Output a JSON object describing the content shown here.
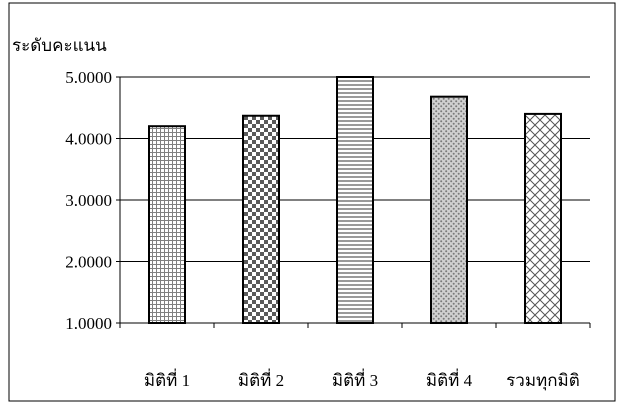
{
  "chart_data": {
    "type": "bar",
    "title": "",
    "xlabel": "",
    "ylabel": "ระดับคะแนน",
    "categories": [
      "มิติที่ 1",
      "มิติที่ 2",
      "มิติที่ 3",
      "มิติที่ 4",
      "รวมทุกมิติ"
    ],
    "values": [
      4.2,
      4.37,
      5.0,
      4.68,
      4.4
    ],
    "ylim": [
      1,
      5
    ],
    "yticks": [
      1,
      2,
      3,
      4,
      5
    ],
    "ytick_labels": [
      "1.0000",
      "2.0000",
      "3.0000",
      "4.0000",
      "5.0000"
    ],
    "grid": true,
    "legend": "none",
    "patterns": [
      "small-grid",
      "checkerboard",
      "horizontal-stripes",
      "dots",
      "diagonal-crosshatch"
    ],
    "colors": {
      "bar_fill": "#ffffff",
      "bar_pattern": "#808080",
      "bar_outline": "#000000",
      "gridline": "#000000",
      "frame": "#000000"
    }
  }
}
